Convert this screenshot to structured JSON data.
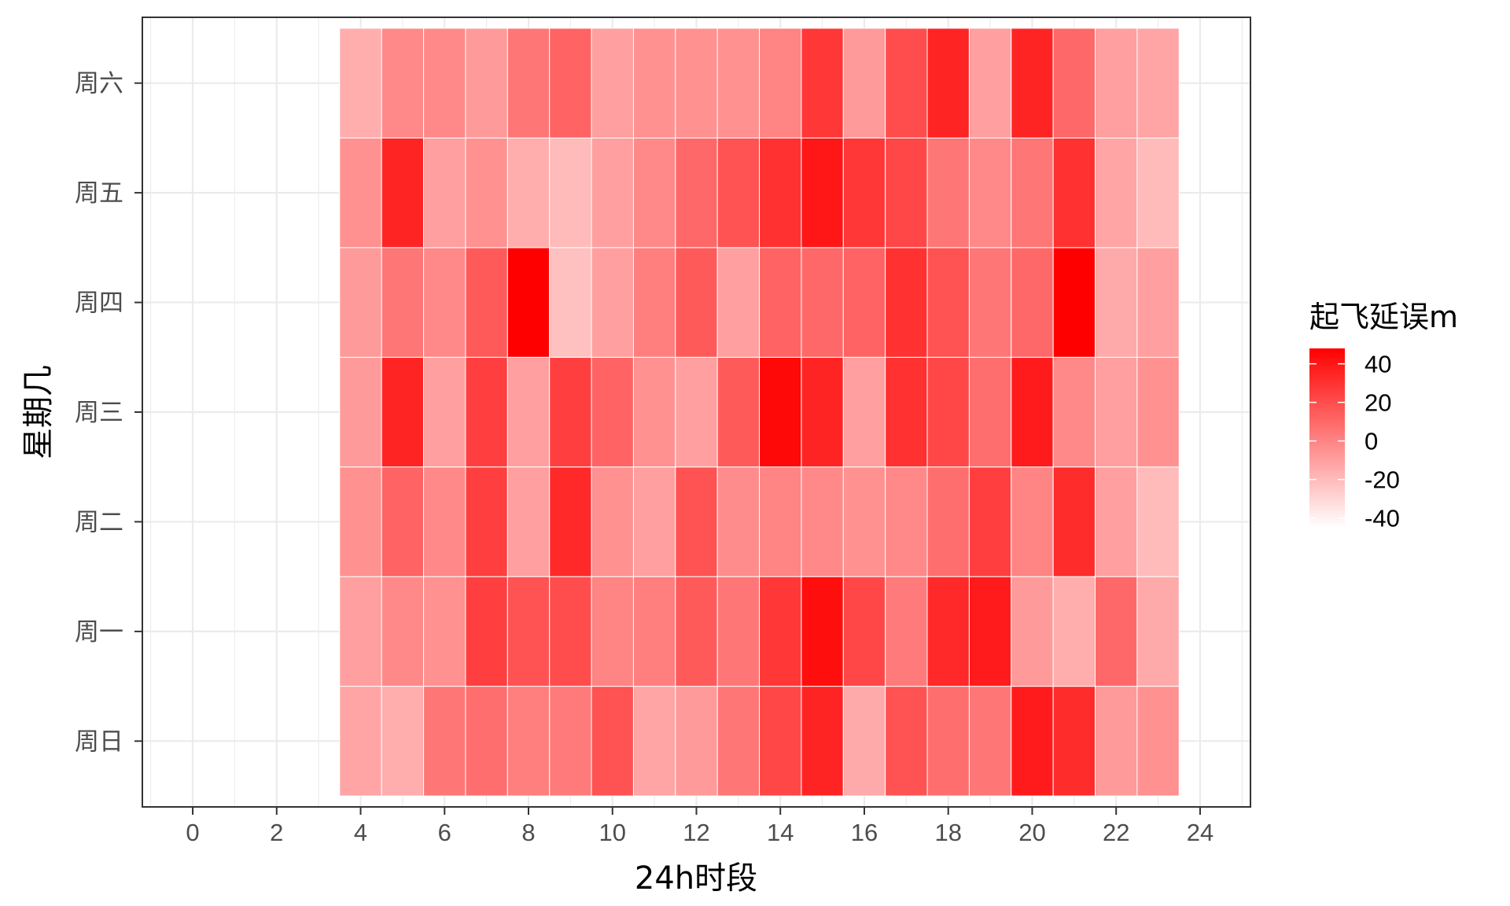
{
  "chart_data": {
    "type": "heatmap",
    "xlabel": "24h时段",
    "ylabel": "星期几",
    "xlim": [
      -1.2,
      25.2
    ],
    "x_ticks": [
      0,
      2,
      4,
      6,
      8,
      10,
      12,
      14,
      16,
      18,
      20,
      22,
      24
    ],
    "x": [
      4,
      5,
      6,
      7,
      8,
      9,
      10,
      11,
      12,
      13,
      14,
      15,
      16,
      17,
      18,
      19,
      20,
      21,
      22,
      23
    ],
    "y_categories": [
      "周日",
      "周一",
      "周二",
      "周三",
      "周四",
      "周五",
      "周六"
    ],
    "values": [
      [
        -12,
        -15,
        5,
        8,
        2,
        3,
        18,
        -12,
        -8,
        5,
        22,
        35,
        -14,
        18,
        8,
        5,
        38,
        32,
        -8,
        -5
      ],
      [
        -10,
        -2,
        -5,
        25,
        18,
        20,
        0,
        2,
        15,
        5,
        28,
        43,
        22,
        3,
        33,
        38,
        -8,
        -15,
        10,
        -14
      ],
      [
        -5,
        12,
        -2,
        25,
        -10,
        33,
        -5,
        -10,
        18,
        -3,
        0,
        -2,
        -5,
        -2,
        8,
        25,
        0,
        32,
        -10,
        -20
      ],
      [
        -8,
        35,
        -10,
        25,
        -10,
        25,
        12,
        -5,
        -10,
        15,
        45,
        35,
        -10,
        30,
        22,
        8,
        38,
        -2,
        -10,
        -5
      ],
      [
        -8,
        5,
        -2,
        15,
        50,
        -22,
        -10,
        2,
        15,
        -10,
        12,
        10,
        12,
        30,
        18,
        5,
        10,
        50,
        -14,
        -10
      ],
      [
        -5,
        35,
        -10,
        -5,
        -15,
        -20,
        -10,
        -2,
        10,
        18,
        30,
        40,
        28,
        22,
        5,
        -2,
        5,
        30,
        -12,
        -20
      ],
      [
        -15,
        -2,
        -2,
        -8,
        5,
        12,
        -10,
        -5,
        -5,
        -5,
        0,
        28,
        -8,
        20,
        35,
        -10,
        35,
        10,
        -10,
        -12
      ]
    ],
    "color_scale": {
      "low": "#ffffff",
      "high": "#ff0000",
      "domain": [
        -45,
        48
      ]
    },
    "legend": {
      "title": "起飞延误m",
      "placement": "right",
      "breaks": [
        40,
        20,
        0,
        -20,
        -40
      ]
    },
    "grid": true
  }
}
